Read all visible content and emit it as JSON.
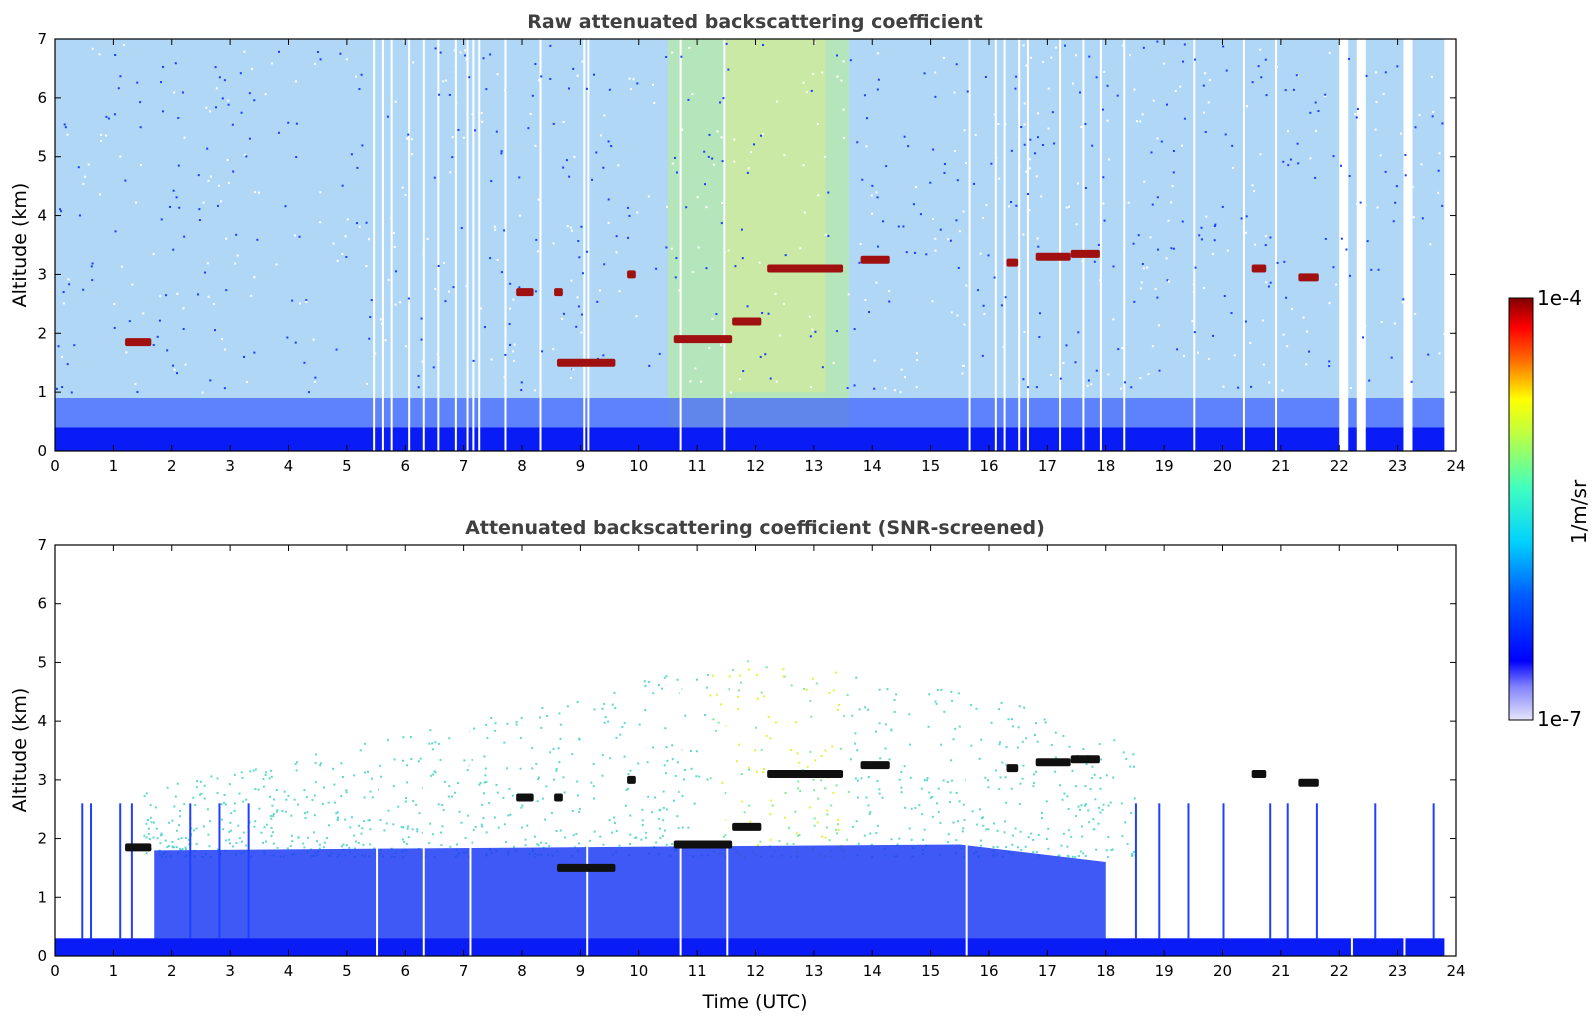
{
  "chart_data": [
    {
      "type": "heatmap",
      "title": "Raw attenuated backscattering coefficient",
      "xlabel": "",
      "ylabel": "Altitude (km)",
      "xlim": [
        0,
        24
      ],
      "ylim": [
        0,
        7
      ],
      "x_ticks": [
        "0",
        "1",
        "2",
        "3",
        "4",
        "5",
        "6",
        "7",
        "8",
        "9",
        "10",
        "11",
        "12",
        "13",
        "14",
        "15",
        "16",
        "17",
        "18",
        "19",
        "20",
        "21",
        "22",
        "23",
        "24"
      ],
      "y_ticks": [
        "0",
        "1",
        "2",
        "3",
        "4",
        "5",
        "6",
        "7"
      ],
      "data_end_hour": 23.8,
      "cloud_layers": [
        {
          "t_start": 1.2,
          "t_end": 1.65,
          "alt": 1.85
        },
        {
          "t_start": 7.9,
          "t_end": 8.2,
          "alt": 2.7
        },
        {
          "t_start": 8.55,
          "t_end": 8.7,
          "alt": 2.7
        },
        {
          "t_start": 8.6,
          "t_end": 9.6,
          "alt": 1.5
        },
        {
          "t_start": 9.8,
          "t_end": 9.95,
          "alt": 3.0
        },
        {
          "t_start": 10.6,
          "t_end": 11.6,
          "alt": 1.9
        },
        {
          "t_start": 11.6,
          "t_end": 12.1,
          "alt": 2.2
        },
        {
          "t_start": 12.2,
          "t_end": 13.5,
          "alt": 3.1
        },
        {
          "t_start": 13.8,
          "t_end": 14.3,
          "alt": 3.25
        },
        {
          "t_start": 16.3,
          "t_end": 16.5,
          "alt": 3.2
        },
        {
          "t_start": 16.8,
          "t_end": 17.4,
          "alt": 3.3
        },
        {
          "t_start": 17.4,
          "t_end": 17.9,
          "alt": 3.35
        },
        {
          "t_start": 20.5,
          "t_end": 20.75,
          "alt": 3.1
        },
        {
          "t_start": 21.3,
          "t_end": 21.65,
          "alt": 2.95
        }
      ]
    },
    {
      "type": "heatmap",
      "title": "Attenuated backscattering coefficient (SNR-screened)",
      "xlabel": "Time (UTC)",
      "ylabel": "Altitude (km)",
      "xlim": [
        0,
        24
      ],
      "ylim": [
        0,
        7
      ],
      "x_ticks": [
        "0",
        "1",
        "2",
        "3",
        "4",
        "5",
        "6",
        "7",
        "8",
        "9",
        "10",
        "11",
        "12",
        "13",
        "14",
        "15",
        "16",
        "17",
        "18",
        "19",
        "20",
        "21",
        "22",
        "23",
        "24"
      ],
      "y_ticks": [
        "0",
        "1",
        "2",
        "3",
        "4",
        "5",
        "6",
        "7"
      ],
      "data_end_hour": 23.8,
      "cloud_layers": [
        {
          "t_start": 1.2,
          "t_end": 1.65,
          "alt": 1.85
        },
        {
          "t_start": 7.9,
          "t_end": 8.2,
          "alt": 2.7
        },
        {
          "t_start": 8.55,
          "t_end": 8.7,
          "alt": 2.7
        },
        {
          "t_start": 8.6,
          "t_end": 9.6,
          "alt": 1.5
        },
        {
          "t_start": 9.8,
          "t_end": 9.95,
          "alt": 3.0
        },
        {
          "t_start": 10.6,
          "t_end": 11.6,
          "alt": 1.9
        },
        {
          "t_start": 11.6,
          "t_end": 12.1,
          "alt": 2.2
        },
        {
          "t_start": 12.2,
          "t_end": 13.5,
          "alt": 3.1
        },
        {
          "t_start": 13.8,
          "t_end": 14.3,
          "alt": 3.25
        },
        {
          "t_start": 16.3,
          "t_end": 16.5,
          "alt": 3.2
        },
        {
          "t_start": 16.8,
          "t_end": 17.4,
          "alt": 3.3
        },
        {
          "t_start": 17.4,
          "t_end": 17.9,
          "alt": 3.35
        },
        {
          "t_start": 20.5,
          "t_end": 20.75,
          "alt": 3.1
        },
        {
          "t_start": 21.3,
          "t_end": 21.65,
          "alt": 2.95
        }
      ]
    }
  ],
  "colorbar": {
    "label": "1/m/sr",
    "max_label": "1e-4",
    "min_label": "1e-7",
    "scale": "log",
    "range": [
      1e-07,
      0.0001
    ],
    "colors": [
      "#e6e6fa",
      "#0000ff",
      "#00ffff",
      "#ffff00",
      "#ff0000",
      "#800000"
    ]
  }
}
